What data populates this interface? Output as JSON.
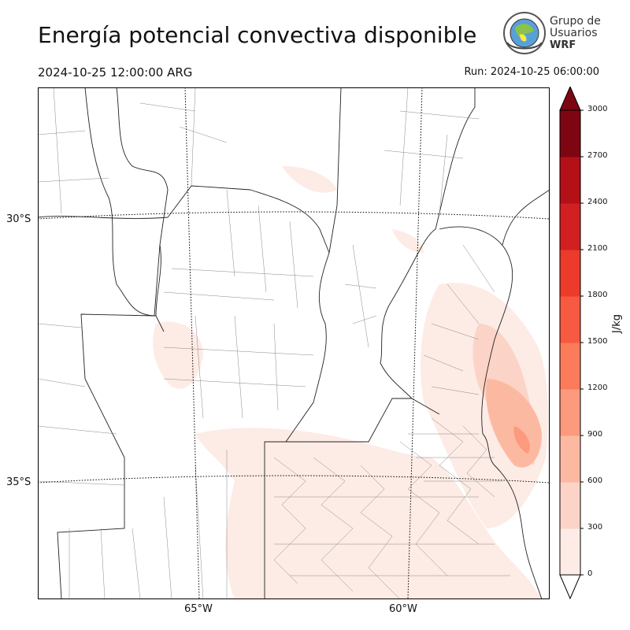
{
  "header": {
    "title": "Energía potencial convectiva disponible",
    "valid_time": "2024-10-25 12:00:00 ARG",
    "run_time": "Run: 2024-10-25 06:00:00"
  },
  "logo": {
    "line1": "Grupo de",
    "line2": "Usuarios",
    "line3": "WRF"
  },
  "map": {
    "lat_labels": [
      "30°S",
      "35°S"
    ],
    "lon_labels": [
      "65°W",
      "60°W"
    ]
  },
  "colorbar": {
    "unit": "J/kg",
    "ticks": [
      "0",
      "300",
      "600",
      "900",
      "1200",
      "1500",
      "1800",
      "2100",
      "2400",
      "2700",
      "3000"
    ],
    "colors": [
      "#fdebe5",
      "#fcd4c7",
      "#fcb9a2",
      "#fc9a7d",
      "#fb7b5a",
      "#f65a40",
      "#ec3a2b",
      "#d21f21",
      "#b31018",
      "#7d0612"
    ],
    "max": 3000
  }
}
